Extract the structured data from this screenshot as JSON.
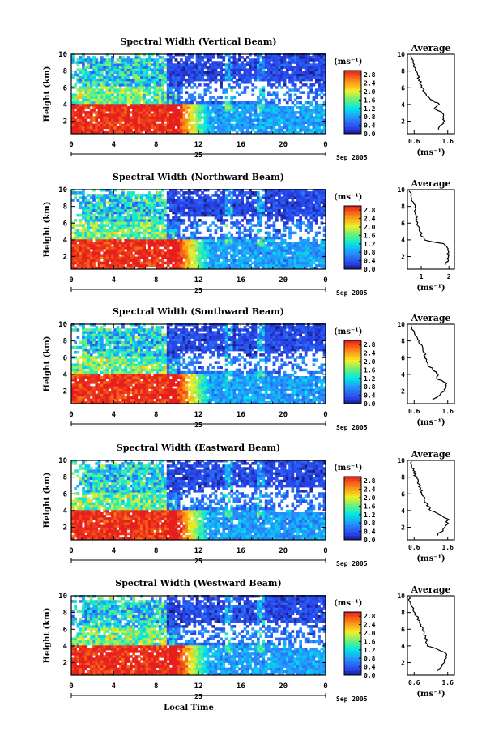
{
  "chart_data": [
    {
      "type": "heatmap",
      "title": "Spectral Width (Vertical Beam)",
      "ylabel": "Height (km)",
      "xlim": [
        0,
        24
      ],
      "ylim": [
        0.5,
        10
      ],
      "x_ticks": [
        "0",
        "4",
        "8",
        "12",
        "16",
        "20",
        "0"
      ],
      "y_ticks": [
        "2",
        "4",
        "6",
        "8",
        "10"
      ],
      "date_label": "25",
      "month_label": "Sep 2005",
      "colorbar": {
        "unit": "(ms⁻¹)",
        "ticks": [
          "2.8",
          "2.4",
          "2.0",
          "1.6",
          "1.2",
          "0.8",
          "0.4",
          "0.0"
        ],
        "min": 0,
        "max": 3.0
      },
      "profile": {
        "title": "Average",
        "xlabel": "(ms⁻¹)",
        "x_ticks": [
          "0.6",
          "1.6"
        ],
        "xlim": [
          0.4,
          1.8
        ],
        "heights": [
          1,
          2,
          3,
          3.5,
          4,
          5,
          6,
          7,
          8,
          9,
          10
        ],
        "values": [
          1.3,
          1.5,
          1.45,
          1.2,
          1.35,
          0.95,
          0.85,
          0.75,
          0.65,
          0.55,
          0.5
        ]
      }
    },
    {
      "type": "heatmap",
      "title": "Spectral Width (Northward Beam)",
      "ylabel": "Height (km)",
      "xlim": [
        0,
        24
      ],
      "ylim": [
        0.5,
        10
      ],
      "x_ticks": [
        "0",
        "4",
        "8",
        "12",
        "16",
        "20",
        "0"
      ],
      "y_ticks": [
        "2",
        "4",
        "6",
        "8",
        "10"
      ],
      "date_label": "25",
      "month_label": "Sep 2005",
      "colorbar": {
        "unit": "(ms⁻¹)",
        "ticks": [
          "2.8",
          "2.4",
          "2.0",
          "1.6",
          "1.2",
          "0.8",
          "0.4",
          "0.0"
        ],
        "min": 0,
        "max": 3.0
      },
      "profile": {
        "title": "Average",
        "xlabel": "(ms⁻¹)",
        "x_ticks": [
          "1",
          "2"
        ],
        "xlim": [
          0.5,
          2.2
        ],
        "heights": [
          1,
          2,
          3,
          3.5,
          4,
          5,
          6,
          7,
          8,
          9,
          10
        ],
        "values": [
          1.9,
          2.0,
          1.95,
          1.85,
          1.1,
          0.95,
          0.85,
          0.8,
          0.75,
          0.65,
          0.55
        ]
      }
    },
    {
      "type": "heatmap",
      "title": "Spectral Width (Southward Beam)",
      "ylabel": "Height (km)",
      "xlim": [
        0,
        24
      ],
      "ylim": [
        0.5,
        10
      ],
      "x_ticks": [
        "0",
        "4",
        "8",
        "12",
        "16",
        "20",
        "0"
      ],
      "y_ticks": [
        "2",
        "4",
        "6",
        "8",
        "10"
      ],
      "date_label": "25",
      "month_label": "Sep 2005",
      "colorbar": {
        "unit": "(ms⁻¹)",
        "ticks": [
          "2.8",
          "2.4",
          "2.0",
          "1.6",
          "1.2",
          "0.8",
          "0.4",
          "0.0"
        ],
        "min": 0,
        "max": 3.0
      },
      "profile": {
        "title": "Average",
        "xlabel": "(ms⁻¹)",
        "x_ticks": [
          "0.6",
          "1.6"
        ],
        "xlim": [
          0.4,
          1.8
        ],
        "heights": [
          1,
          2,
          3,
          3.5,
          4,
          5,
          6,
          7,
          8,
          9,
          10
        ],
        "values": [
          1.15,
          1.5,
          1.55,
          1.3,
          1.3,
          1.05,
          0.95,
          0.85,
          0.75,
          0.6,
          0.5
        ]
      }
    },
    {
      "type": "heatmap",
      "title": "Spectral Width (Eastward Beam)",
      "ylabel": "Height (km)",
      "xlim": [
        0,
        24
      ],
      "ylim": [
        0.5,
        10
      ],
      "x_ticks": [
        "0",
        "4",
        "8",
        "12",
        "16",
        "20",
        "0"
      ],
      "y_ticks": [
        "2",
        "4",
        "6",
        "8",
        "10"
      ],
      "date_label": "25",
      "month_label": "Sep 2005",
      "colorbar": {
        "unit": "(ms⁻¹)",
        "ticks": [
          "2.8",
          "2.4",
          "2.0",
          "1.6",
          "1.2",
          "0.8",
          "0.4",
          "0.0"
        ],
        "min": 0,
        "max": 3.0
      },
      "profile": {
        "title": "Average",
        "xlabel": "(ms⁻¹)",
        "x_ticks": [
          "0.6",
          "1.6"
        ],
        "xlim": [
          0.4,
          1.8
        ],
        "heights": [
          1,
          2,
          3,
          3.5,
          4,
          5,
          6,
          7,
          8,
          9,
          10
        ],
        "values": [
          1.25,
          1.55,
          1.6,
          1.4,
          1.1,
          0.95,
          0.85,
          0.75,
          0.65,
          0.55,
          0.5
        ]
      }
    },
    {
      "type": "heatmap",
      "title": "Spectral Width (Westward Beam)",
      "ylabel": "Height (km)",
      "xlim": [
        0,
        24
      ],
      "ylim": [
        0.5,
        10
      ],
      "x_ticks": [
        "0",
        "4",
        "8",
        "12",
        "16",
        "20",
        "0"
      ],
      "y_ticks": [
        "2",
        "4",
        "6",
        "8",
        "10"
      ],
      "date_label": "25",
      "month_label": "Sep 2005",
      "xlabel": "Local Time",
      "colorbar": {
        "unit": "(ms⁻¹)",
        "ticks": [
          "2.8",
          "2.4",
          "2.0",
          "1.6",
          "1.2",
          "0.8",
          "0.4",
          "0.0"
        ],
        "min": 0,
        "max": 3.0
      },
      "profile": {
        "title": "Average",
        "xlabel": "(ms⁻¹)",
        "x_ticks": [
          "0.6",
          "1.6"
        ],
        "xlim": [
          0.4,
          1.8
        ],
        "heights": [
          1,
          2,
          3,
          3.5,
          4,
          5,
          6,
          7,
          8,
          9,
          10
        ],
        "values": [
          1.3,
          1.5,
          1.55,
          1.35,
          1.0,
          0.95,
          0.85,
          0.75,
          0.6,
          0.5,
          0.45
        ]
      }
    }
  ]
}
